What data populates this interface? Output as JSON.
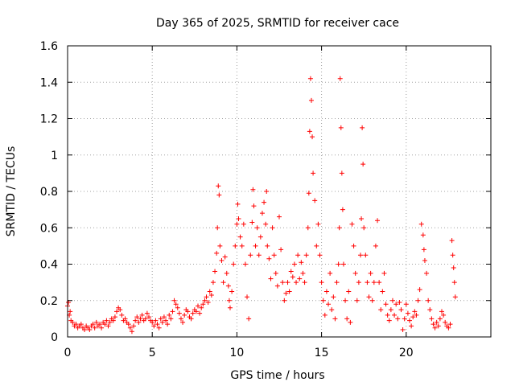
{
  "chart_data": {
    "type": "scatter",
    "title": "Day 365 of 2025, SRMTID for receiver cace",
    "xlabel": "GPS time / hours",
    "ylabel": "SRMTID / TECUs",
    "xlim": [
      0,
      25
    ],
    "ylim": [
      0,
      1.6
    ],
    "xticks": [
      0,
      5,
      10,
      15,
      20
    ],
    "xtick_labels": [
      "0",
      "5",
      "10",
      "15",
      "20"
    ],
    "yticks": [
      0,
      0.2,
      0.4,
      0.6,
      0.8,
      1,
      1.2,
      1.4,
      1.6
    ],
    "ytick_labels": [
      "0",
      "0.2",
      "0.4",
      "0.6",
      "0.8",
      "1",
      "1.2",
      "1.4",
      "1.6"
    ],
    "grid": true,
    "marker": "+",
    "color": "#ff0000",
    "series": [
      {
        "name": "SRMTID",
        "points": [
          [
            0.0,
            0.17
          ],
          [
            0.05,
            0.19
          ],
          [
            0.1,
            0.12
          ],
          [
            0.15,
            0.14
          ],
          [
            0.2,
            0.09
          ],
          [
            0.3,
            0.08
          ],
          [
            0.4,
            0.06
          ],
          [
            0.5,
            0.07
          ],
          [
            0.6,
            0.05
          ],
          [
            0.7,
            0.06
          ],
          [
            0.8,
            0.07
          ],
          [
            0.9,
            0.05
          ],
          [
            1.0,
            0.04
          ],
          [
            1.1,
            0.06
          ],
          [
            1.2,
            0.05
          ],
          [
            1.3,
            0.04
          ],
          [
            1.4,
            0.06
          ],
          [
            1.5,
            0.07
          ],
          [
            1.6,
            0.05
          ],
          [
            1.7,
            0.08
          ],
          [
            1.8,
            0.06
          ],
          [
            1.9,
            0.07
          ],
          [
            2.0,
            0.05
          ],
          [
            2.1,
            0.08
          ],
          [
            2.2,
            0.07
          ],
          [
            2.3,
            0.09
          ],
          [
            2.4,
            0.06
          ],
          [
            2.5,
            0.08
          ],
          [
            2.6,
            0.1
          ],
          [
            2.7,
            0.09
          ],
          [
            2.8,
            0.11
          ],
          [
            2.9,
            0.14
          ],
          [
            3.0,
            0.16
          ],
          [
            3.1,
            0.15
          ],
          [
            3.2,
            0.12
          ],
          [
            3.3,
            0.09
          ],
          [
            3.4,
            0.1
          ],
          [
            3.5,
            0.08
          ],
          [
            3.6,
            0.07
          ],
          [
            3.7,
            0.05
          ],
          [
            3.8,
            0.03
          ],
          [
            3.9,
            0.06
          ],
          [
            4.0,
            0.09
          ],
          [
            4.1,
            0.11
          ],
          [
            4.2,
            0.08
          ],
          [
            4.3,
            0.1
          ],
          [
            4.4,
            0.12
          ],
          [
            4.5,
            0.09
          ],
          [
            4.6,
            0.1
          ],
          [
            4.7,
            0.13
          ],
          [
            4.8,
            0.11
          ],
          [
            4.9,
            0.09
          ],
          [
            5.0,
            0.08
          ],
          [
            5.1,
            0.06
          ],
          [
            5.2,
            0.09
          ],
          [
            5.3,
            0.07
          ],
          [
            5.4,
            0.05
          ],
          [
            5.5,
            0.1
          ],
          [
            5.6,
            0.08
          ],
          [
            5.7,
            0.11
          ],
          [
            5.8,
            0.09
          ],
          [
            5.9,
            0.07
          ],
          [
            6.0,
            0.12
          ],
          [
            6.1,
            0.1
          ],
          [
            6.2,
            0.14
          ],
          [
            6.3,
            0.2
          ],
          [
            6.4,
            0.18
          ],
          [
            6.5,
            0.16
          ],
          [
            6.6,
            0.13
          ],
          [
            6.7,
            0.1
          ],
          [
            6.8,
            0.08
          ],
          [
            6.9,
            0.12
          ],
          [
            7.0,
            0.15
          ],
          [
            7.1,
            0.14
          ],
          [
            7.2,
            0.11
          ],
          [
            7.3,
            0.1
          ],
          [
            7.4,
            0.13
          ],
          [
            7.5,
            0.15
          ],
          [
            7.6,
            0.14
          ],
          [
            7.7,
            0.17
          ],
          [
            7.8,
            0.13
          ],
          [
            7.9,
            0.16
          ],
          [
            8.0,
            0.18
          ],
          [
            8.1,
            0.2
          ],
          [
            8.2,
            0.22
          ],
          [
            8.3,
            0.19
          ],
          [
            8.4,
            0.25
          ],
          [
            8.5,
            0.23
          ],
          [
            8.6,
            0.3
          ],
          [
            8.7,
            0.36
          ],
          [
            8.8,
            0.46
          ],
          [
            8.85,
            0.6
          ],
          [
            8.9,
            0.83
          ],
          [
            8.95,
            0.78
          ],
          [
            9.0,
            0.5
          ],
          [
            9.1,
            0.42
          ],
          [
            9.2,
            0.3
          ],
          [
            9.3,
            0.44
          ],
          [
            9.4,
            0.35
          ],
          [
            9.5,
            0.28
          ],
          [
            9.55,
            0.2
          ],
          [
            9.6,
            0.16
          ],
          [
            9.7,
            0.25
          ],
          [
            9.8,
            0.4
          ],
          [
            9.9,
            0.5
          ],
          [
            10.0,
            0.62
          ],
          [
            10.05,
            0.73
          ],
          [
            10.1,
            0.65
          ],
          [
            10.2,
            0.55
          ],
          [
            10.3,
            0.5
          ],
          [
            10.4,
            0.62
          ],
          [
            10.5,
            0.4
          ],
          [
            10.6,
            0.22
          ],
          [
            10.7,
            0.1
          ],
          [
            10.8,
            0.45
          ],
          [
            10.9,
            0.63
          ],
          [
            10.95,
            0.81
          ],
          [
            11.0,
            0.72
          ],
          [
            11.1,
            0.5
          ],
          [
            11.2,
            0.6
          ],
          [
            11.3,
            0.45
          ],
          [
            11.4,
            0.55
          ],
          [
            11.5,
            0.68
          ],
          [
            11.6,
            0.74
          ],
          [
            11.7,
            0.62
          ],
          [
            11.75,
            0.8
          ],
          [
            11.8,
            0.5
          ],
          [
            11.9,
            0.43
          ],
          [
            12.0,
            0.32
          ],
          [
            12.1,
            0.6
          ],
          [
            12.2,
            0.45
          ],
          [
            12.3,
            0.35
          ],
          [
            12.4,
            0.28
          ],
          [
            12.5,
            0.66
          ],
          [
            12.6,
            0.48
          ],
          [
            12.7,
            0.3
          ],
          [
            12.8,
            0.2
          ],
          [
            12.9,
            0.24
          ],
          [
            13.0,
            0.3
          ],
          [
            13.1,
            0.25
          ],
          [
            13.2,
            0.36
          ],
          [
            13.3,
            0.33
          ],
          [
            13.4,
            0.4
          ],
          [
            13.5,
            0.3
          ],
          [
            13.6,
            0.45
          ],
          [
            13.7,
            0.32
          ],
          [
            13.8,
            0.41
          ],
          [
            13.9,
            0.35
          ],
          [
            14.0,
            0.3
          ],
          [
            14.1,
            0.45
          ],
          [
            14.2,
            0.6
          ],
          [
            14.25,
            0.79
          ],
          [
            14.3,
            1.13
          ],
          [
            14.35,
            1.42
          ],
          [
            14.4,
            1.3
          ],
          [
            14.45,
            1.1
          ],
          [
            14.5,
            0.9
          ],
          [
            14.6,
            0.75
          ],
          [
            14.7,
            0.5
          ],
          [
            14.8,
            0.62
          ],
          [
            14.9,
            0.45
          ],
          [
            15.0,
            0.3
          ],
          [
            15.1,
            0.2
          ],
          [
            15.2,
            0.12
          ],
          [
            15.3,
            0.25
          ],
          [
            15.4,
            0.18
          ],
          [
            15.5,
            0.35
          ],
          [
            15.6,
            0.15
          ],
          [
            15.7,
            0.22
          ],
          [
            15.8,
            0.1
          ],
          [
            15.9,
            0.3
          ],
          [
            16.0,
            0.4
          ],
          [
            16.05,
            0.6
          ],
          [
            16.1,
            1.42
          ],
          [
            16.15,
            1.15
          ],
          [
            16.2,
            0.9
          ],
          [
            16.25,
            0.7
          ],
          [
            16.3,
            0.4
          ],
          [
            16.4,
            0.2
          ],
          [
            16.5,
            0.1
          ],
          [
            16.6,
            0.25
          ],
          [
            16.7,
            0.08
          ],
          [
            16.8,
            0.62
          ],
          [
            16.9,
            0.5
          ],
          [
            17.0,
            0.35
          ],
          [
            17.1,
            0.2
          ],
          [
            17.2,
            0.3
          ],
          [
            17.3,
            0.45
          ],
          [
            17.35,
            0.65
          ],
          [
            17.4,
            1.15
          ],
          [
            17.45,
            0.95
          ],
          [
            17.5,
            0.6
          ],
          [
            17.6,
            0.45
          ],
          [
            17.7,
            0.3
          ],
          [
            17.8,
            0.22
          ],
          [
            17.9,
            0.35
          ],
          [
            18.0,
            0.2
          ],
          [
            18.1,
            0.3
          ],
          [
            18.2,
            0.5
          ],
          [
            18.3,
            0.64
          ],
          [
            18.4,
            0.3
          ],
          [
            18.5,
            0.15
          ],
          [
            18.6,
            0.25
          ],
          [
            18.7,
            0.35
          ],
          [
            18.8,
            0.18
          ],
          [
            18.9,
            0.12
          ],
          [
            19.0,
            0.09
          ],
          [
            19.1,
            0.15
          ],
          [
            19.2,
            0.2
          ],
          [
            19.3,
            0.12
          ],
          [
            19.4,
            0.18
          ],
          [
            19.5,
            0.1
          ],
          [
            19.6,
            0.19
          ],
          [
            19.7,
            0.15
          ],
          [
            19.8,
            0.04
          ],
          [
            19.9,
            0.1
          ],
          [
            20.0,
            0.18
          ],
          [
            20.1,
            0.13
          ],
          [
            20.2,
            0.09
          ],
          [
            20.3,
            0.06
          ],
          [
            20.4,
            0.11
          ],
          [
            20.5,
            0.14
          ],
          [
            20.6,
            0.12
          ],
          [
            20.7,
            0.2
          ],
          [
            20.8,
            0.26
          ],
          [
            20.9,
            0.62
          ],
          [
            21.0,
            0.56
          ],
          [
            21.05,
            0.48
          ],
          [
            21.1,
            0.42
          ],
          [
            21.2,
            0.35
          ],
          [
            21.3,
            0.2
          ],
          [
            21.4,
            0.15
          ],
          [
            21.5,
            0.1
          ],
          [
            21.6,
            0.07
          ],
          [
            21.7,
            0.05
          ],
          [
            21.8,
            0.08
          ],
          [
            21.9,
            0.06
          ],
          [
            22.0,
            0.1
          ],
          [
            22.1,
            0.14
          ],
          [
            22.2,
            0.12
          ],
          [
            22.3,
            0.08
          ],
          [
            22.4,
            0.06
          ],
          [
            22.5,
            0.05
          ],
          [
            22.6,
            0.07
          ],
          [
            22.7,
            0.53
          ],
          [
            22.75,
            0.45
          ],
          [
            22.8,
            0.38
          ],
          [
            22.85,
            0.3
          ],
          [
            22.9,
            0.22
          ]
        ]
      }
    ]
  }
}
